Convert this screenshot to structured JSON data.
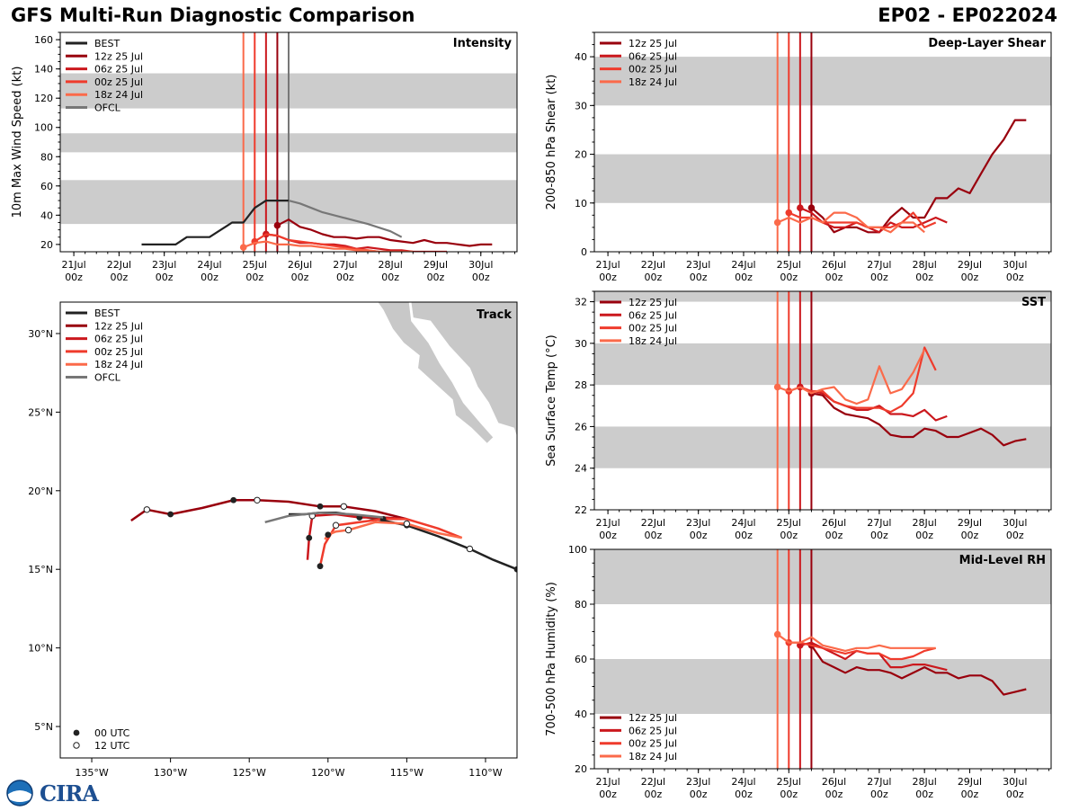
{
  "title": "GFS Multi-Run Diagnostic Comparison",
  "storm_id": "EP02 - EP022024",
  "logo_text": "CIRA",
  "colors": {
    "best": "#222222",
    "r12z25": "#99000d",
    "r06z25": "#cb181d",
    "r00z25": "#ef3b2c",
    "r18z24": "#fb6a4a",
    "ofcl": "#777777",
    "band": "#cccccc"
  },
  "time_ticks": [
    "21Jul\n00z",
    "22Jul\n00z",
    "23Jul\n00z",
    "24Jul\n00z",
    "25Jul\n00z",
    "26Jul\n00z",
    "27Jul\n00z",
    "28Jul\n00z",
    "29Jul\n00z",
    "30Jul\n00z"
  ],
  "init_times": [
    {
      "label": "18z 24 Jul",
      "t": 3.75,
      "color": "r18z24"
    },
    {
      "label": "00z 25 Jul",
      "t": 4.0,
      "color": "r00z25"
    },
    {
      "label": "06z 25 Jul",
      "t": 4.25,
      "color": "r06z25"
    },
    {
      "label": "12z 25 Jul",
      "t": 4.5,
      "color": "r12z25"
    }
  ],
  "chart_data": [
    {
      "id": "intensity",
      "type": "line",
      "title": "Intensity",
      "ylabel": "10m Max Wind Speed (kt)",
      "xlim": [
        -0.3,
        9.8
      ],
      "ylim": [
        15,
        165
      ],
      "yticks": [
        20,
        40,
        60,
        80,
        100,
        120,
        140,
        160
      ],
      "bands": [
        [
          34,
          64
        ],
        [
          83,
          96
        ],
        [
          113,
          137
        ]
      ],
      "legend": [
        "BEST",
        "12z 25 Jul",
        "06z 25 Jul",
        "00z 25 Jul",
        "18z 24 Jul",
        "OFCL"
      ],
      "legend_position": "top-left",
      "ofcl_init": 4.75,
      "series": [
        {
          "name": "BEST",
          "color": "best",
          "x": [
            1.5,
            1.75,
            2.0,
            2.25,
            2.5,
            2.75,
            3.0,
            3.25,
            3.5,
            3.75,
            4.0,
            4.25,
            4.5,
            4.75
          ],
          "y": [
            20,
            20,
            20,
            20,
            25,
            25,
            25,
            30,
            35,
            35,
            45,
            50,
            50,
            50
          ]
        },
        {
          "name": "12z 25 Jul",
          "color": "r12z25",
          "x": [
            4.5,
            4.75,
            5.0,
            5.25,
            5.5,
            5.75,
            6.0,
            6.25,
            6.5,
            6.75,
            7.0,
            7.25,
            7.5,
            7.75,
            8.0,
            8.25,
            8.5,
            8.75,
            9.0,
            9.25
          ],
          "y": [
            33,
            37,
            32,
            30,
            27,
            25,
            25,
            24,
            25,
            25,
            23,
            22,
            21,
            23,
            21,
            21,
            20,
            19,
            20,
            20
          ]
        },
        {
          "name": "06z 25 Jul",
          "color": "r06z25",
          "x": [
            4.25,
            4.5,
            4.75,
            5.0,
            5.25,
            5.5,
            5.75,
            6.0,
            6.25,
            6.5,
            6.75,
            7.0,
            7.25,
            7.5,
            7.75,
            8.0,
            8.25
          ],
          "y": [
            27,
            26,
            23,
            21,
            21,
            20,
            20,
            19,
            17,
            18,
            17,
            16,
            16,
            15,
            15,
            15,
            15
          ]
        },
        {
          "name": "00z 25 Jul",
          "color": "r00z25",
          "x": [
            4.0,
            4.25,
            4.5,
            4.75,
            5.0,
            5.25,
            5.5,
            5.75,
            6.0,
            6.25,
            6.5,
            6.75,
            7.0,
            7.25,
            7.5
          ],
          "y": [
            22,
            27,
            26,
            23,
            22,
            21,
            20,
            19,
            18,
            17,
            16,
            15,
            15,
            15,
            15
          ]
        },
        {
          "name": "18z 24 Jul",
          "color": "r18z24",
          "x": [
            3.75,
            4.0,
            4.25,
            4.5,
            4.75,
            5.0,
            5.25,
            5.5,
            5.75,
            6.0,
            6.25,
            6.5,
            6.75,
            7.0,
            7.25,
            7.5
          ],
          "y": [
            18,
            21,
            22,
            20,
            20,
            19,
            19,
            18,
            17,
            17,
            16,
            16,
            15,
            15,
            15,
            15
          ]
        },
        {
          "name": "OFCL",
          "color": "ofcl",
          "x": [
            4.75,
            5.0,
            5.25,
            5.5,
            6.0,
            6.5,
            7.0,
            7.25
          ],
          "y": [
            50,
            48,
            45,
            42,
            38,
            34,
            29,
            25
          ]
        }
      ]
    },
    {
      "id": "shear",
      "type": "line",
      "title": "Deep-Layer Shear",
      "ylabel": "200-850 hPa Shear (kt)",
      "xlim": [
        -0.3,
        9.8
      ],
      "ylim": [
        0,
        45
      ],
      "yticks": [
        0,
        10,
        20,
        30,
        40
      ],
      "bands": [
        [
          10,
          20
        ],
        [
          30,
          40
        ]
      ],
      "legend": [
        "12z 25 Jul",
        "06z 25 Jul",
        "00z 25 Jul",
        "18z 24 Jul"
      ],
      "legend_position": "top-left",
      "series": [
        {
          "name": "12z 25 Jul",
          "color": "r12z25",
          "x": [
            4.5,
            4.75,
            5.0,
            5.25,
            5.5,
            5.75,
            6.0,
            6.25,
            6.5,
            6.75,
            7.0,
            7.25,
            7.5,
            7.75,
            8.0,
            8.25,
            8.5,
            8.75,
            9.0,
            9.25
          ],
          "y": [
            9,
            7,
            4,
            5,
            5,
            4,
            4,
            7,
            9,
            7,
            7,
            11,
            11,
            13,
            12,
            16,
            20,
            23,
            27,
            27
          ]
        },
        {
          "name": "06z 25 Jul",
          "color": "r06z25",
          "x": [
            4.25,
            4.5,
            4.75,
            5.0,
            5.25,
            5.5,
            5.75,
            6.0,
            6.25,
            6.5,
            6.75,
            7.0,
            7.25,
            7.5
          ],
          "y": [
            9,
            8,
            6,
            5,
            5,
            6,
            5,
            4,
            6,
            5,
            5,
            6,
            7,
            6
          ]
        },
        {
          "name": "00z 25 Jul",
          "color": "r00z25",
          "x": [
            4.0,
            4.25,
            4.5,
            4.75,
            5.0,
            5.25,
            5.5,
            5.75,
            6.0,
            6.25,
            6.5,
            6.75,
            7.0,
            7.25
          ],
          "y": [
            8,
            7,
            7,
            6,
            6,
            6,
            6,
            5,
            5,
            5,
            6,
            8,
            5,
            6
          ]
        },
        {
          "name": "18z 24 Jul",
          "color": "r18z24",
          "x": [
            3.75,
            4.0,
            4.25,
            4.5,
            4.75,
            5.0,
            5.25,
            5.5,
            5.75,
            6.0,
            6.25,
            6.5,
            6.75,
            7.0
          ],
          "y": [
            6,
            7,
            6,
            7,
            6,
            8,
            8,
            7,
            5,
            5,
            4,
            6,
            6,
            4
          ]
        }
      ]
    },
    {
      "id": "sst",
      "type": "line",
      "title": "SST",
      "ylabel": "Sea Surface Temp (°C)",
      "xlim": [
        -0.3,
        9.8
      ],
      "ylim": [
        22,
        32.5
      ],
      "yticks": [
        22,
        24,
        26,
        28,
        30,
        32
      ],
      "bands": [
        [
          24,
          26
        ],
        [
          28,
          30
        ],
        [
          32,
          32.5
        ]
      ],
      "legend": [
        "12z 25 Jul",
        "06z 25 Jul",
        "00z 25 Jul",
        "18z 24 Jul"
      ],
      "legend_position": "top-left",
      "series": [
        {
          "name": "12z 25 Jul",
          "color": "r12z25",
          "x": [
            4.5,
            4.75,
            5.0,
            5.25,
            5.5,
            5.75,
            6.0,
            6.25,
            6.5,
            6.75,
            7.0,
            7.25,
            7.5,
            7.75,
            8.0,
            8.25,
            8.5,
            8.75,
            9.0,
            9.25
          ],
          "y": [
            27.6,
            27.5,
            26.9,
            26.6,
            26.5,
            26.4,
            26.1,
            25.6,
            25.5,
            25.5,
            25.9,
            25.8,
            25.5,
            25.5,
            25.7,
            25.9,
            25.6,
            25.1,
            25.3,
            25.4
          ]
        },
        {
          "name": "06z 25 Jul",
          "color": "r06z25",
          "x": [
            4.25,
            4.5,
            4.75,
            5.0,
            5.25,
            5.5,
            5.75,
            6.0,
            6.25,
            6.5,
            6.75,
            7.0,
            7.25,
            7.5
          ],
          "y": [
            27.9,
            27.7,
            27.6,
            27.2,
            27.0,
            26.8,
            26.8,
            27.0,
            26.6,
            26.6,
            26.5,
            26.8,
            26.3,
            26.5
          ]
        },
        {
          "name": "00z 25 Jul",
          "color": "r00z25",
          "x": [
            4.0,
            4.25,
            4.5,
            4.75,
            5.0,
            5.25,
            5.5,
            5.75,
            6.0,
            6.25,
            6.5,
            6.75,
            7.0,
            7.25
          ],
          "y": [
            27.7,
            27.9,
            27.7,
            27.7,
            27.2,
            27.0,
            26.9,
            26.9,
            26.9,
            26.7,
            27.0,
            27.6,
            29.8,
            28.7
          ]
        },
        {
          "name": "18z 24 Jul",
          "color": "r18z24",
          "x": [
            3.75,
            4.0,
            4.25,
            4.5,
            4.75,
            5.0,
            5.25,
            5.5,
            5.75,
            6.0,
            6.25,
            6.5,
            6.75,
            7.0
          ],
          "y": [
            27.9,
            27.7,
            27.9,
            27.6,
            27.8,
            27.9,
            27.3,
            27.1,
            27.3,
            28.9,
            27.6,
            27.8,
            28.6,
            29.7
          ]
        }
      ]
    },
    {
      "id": "rh",
      "type": "line",
      "title": "Mid-Level RH",
      "ylabel": "700-500 hPa Humidity (%)",
      "xlim": [
        -0.3,
        9.8
      ],
      "ylim": [
        20,
        100
      ],
      "yticks": [
        20,
        40,
        60,
        80,
        100
      ],
      "bands": [
        [
          40,
          60
        ],
        [
          80,
          100
        ]
      ],
      "legend": [
        "12z 25 Jul",
        "06z 25 Jul",
        "00z 25 Jul",
        "18z 24 Jul"
      ],
      "legend_position": "bottom-left",
      "series": [
        {
          "name": "12z 25 Jul",
          "color": "r12z25",
          "x": [
            4.5,
            4.75,
            5.0,
            5.25,
            5.5,
            5.75,
            6.0,
            6.25,
            6.5,
            6.75,
            7.0,
            7.25,
            7.5,
            7.75,
            8.0,
            8.25,
            8.5,
            8.75,
            9.0,
            9.25
          ],
          "y": [
            65,
            59,
            57,
            55,
            57,
            56,
            56,
            55,
            53,
            55,
            57,
            55,
            55,
            53,
            54,
            54,
            52,
            47,
            48,
            49
          ]
        },
        {
          "name": "06z 25 Jul",
          "color": "r06z25",
          "x": [
            4.25,
            4.5,
            4.75,
            5.0,
            5.25,
            5.5,
            5.75,
            6.0,
            6.25,
            6.5,
            6.75,
            7.0,
            7.25,
            7.5
          ],
          "y": [
            65,
            66,
            64,
            62,
            60,
            63,
            62,
            62,
            57,
            57,
            58,
            58,
            57,
            56
          ]
        },
        {
          "name": "00z 25 Jul",
          "color": "r00z25",
          "x": [
            4.0,
            4.25,
            4.5,
            4.75,
            5.0,
            5.25,
            5.5,
            5.75,
            6.0,
            6.25,
            6.5,
            6.75,
            7.0,
            7.25
          ],
          "y": [
            66,
            66,
            65,
            64,
            63,
            62,
            63,
            62,
            62,
            60,
            60,
            61,
            63,
            64
          ]
        },
        {
          "name": "18z 24 Jul",
          "color": "r18z24",
          "x": [
            3.75,
            4.0,
            4.25,
            4.5,
            4.75,
            5.0,
            5.25,
            5.5,
            5.75,
            6.0,
            6.25,
            6.5,
            6.75,
            7.0,
            7.25
          ],
          "y": [
            69,
            66,
            66,
            68,
            65,
            64,
            63,
            64,
            64,
            65,
            64,
            64,
            64,
            64,
            64
          ]
        }
      ]
    },
    {
      "id": "track",
      "type": "scatter",
      "title": "Track",
      "xlim": [
        -137,
        -108
      ],
      "ylim": [
        3,
        32
      ],
      "xticks": [
        -135,
        -130,
        -125,
        -120,
        -115,
        -110
      ],
      "xtick_labels": [
        "135°W",
        "130°W",
        "125°W",
        "120°W",
        "115°W",
        "110°W"
      ],
      "yticks": [
        5,
        10,
        15,
        20,
        25,
        30
      ],
      "ytick_labels": [
        "5°N",
        "10°N",
        "15°N",
        "20°N",
        "25°N",
        "30°N"
      ],
      "legend": [
        "BEST",
        "12z 25 Jul",
        "06z 25 Jul",
        "00z 25 Jul",
        "18z 24 Jul",
        "OFCL"
      ],
      "marker_legend": [
        "00 UTC",
        "12 UTC"
      ],
      "legend_position": "top-left",
      "series": [
        {
          "name": "BEST",
          "color": "best",
          "lon": [
            -108,
            -109.5,
            -111,
            -113,
            -115,
            -116.5,
            -118,
            -119.5,
            -120.5,
            -121.5,
            -122.5
          ],
          "lat": [
            15.0,
            15.6,
            16.3,
            17.1,
            17.8,
            18.1,
            18.4,
            18.6,
            18.6,
            18.5,
            18.5
          ],
          "mark_00": [
            0,
            4
          ],
          "mark_12": [
            2
          ]
        },
        {
          "name": "12z 25 Jul",
          "color": "r12z25",
          "lon": [
            -115,
            -117,
            -119,
            -120.5,
            -122.5,
            -124.5,
            -126,
            -128,
            -130,
            -131.5,
            -132.5
          ],
          "lat": [
            18.2,
            18.7,
            19.0,
            19.0,
            19.3,
            19.4,
            19.4,
            18.9,
            18.5,
            18.8,
            18.1
          ],
          "mark_00": [
            3,
            6,
            8
          ],
          "mark_12": [
            2,
            5,
            9
          ]
        },
        {
          "name": "06z 25 Jul",
          "color": "r06z25",
          "lon": [
            -115,
            -116.5,
            -118,
            -119.5,
            -121,
            -121.2,
            -121.3
          ],
          "lat": [
            18.2,
            18.3,
            18.3,
            18.5,
            18.4,
            17.0,
            15.6
          ],
          "mark_00": [
            2,
            5
          ],
          "mark_12": [
            4
          ]
        },
        {
          "name": "00z 25 Jul",
          "color": "r00z25",
          "lon": [
            -111.5,
            -113,
            -115,
            -116.5,
            -118,
            -119.5,
            -120.2,
            -120.5
          ],
          "lat": [
            17.0,
            17.6,
            18.2,
            18.2,
            18.0,
            17.8,
            16.6,
            15.2
          ],
          "mark_00": [
            3,
            7
          ],
          "mark_12": [
            5
          ]
        },
        {
          "name": "18z 24 Jul",
          "color": "r18z24",
          "lon": [
            -111.5,
            -113,
            -115,
            -117,
            -118.7,
            -119.5,
            -120,
            -120.2
          ],
          "lat": [
            17.0,
            17.3,
            17.9,
            18.0,
            17.5,
            17.4,
            17.2,
            16.9
          ],
          "mark_00": [
            6
          ],
          "mark_12": [
            2,
            4
          ]
        },
        {
          "name": "OFCL",
          "color": "ofcl",
          "lon": [
            -116.5,
            -118.5,
            -120.5,
            -122.5,
            -124
          ],
          "lat": [
            18.3,
            18.5,
            18.6,
            18.4,
            18.0
          ],
          "mark_00": [],
          "mark_12": []
        }
      ]
    }
  ]
}
